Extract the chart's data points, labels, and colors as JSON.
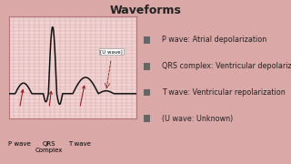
{
  "title": "Waveforms",
  "background_color": "#dba8a8",
  "panel_bg": "#f2d4d4",
  "grid_color": "#cc9999",
  "ecg_color": "#111111",
  "arrow_color": "#8b1a1a",
  "legend_items": [
    "P wave: Atrial depolarization",
    "QRS complex: Ventricular depolarization",
    "T wave: Ventricular repolarization",
    "(U wave: Unknown)"
  ],
  "legend_bullet_color": "#666666",
  "label_p": "P wave",
  "label_qrs": "QRS\nComplex",
  "label_t": "T wave",
  "label_u": "[U wave]",
  "title_fontsize": 9,
  "legend_fontsize": 5.8,
  "label_fontsize": 5.0
}
